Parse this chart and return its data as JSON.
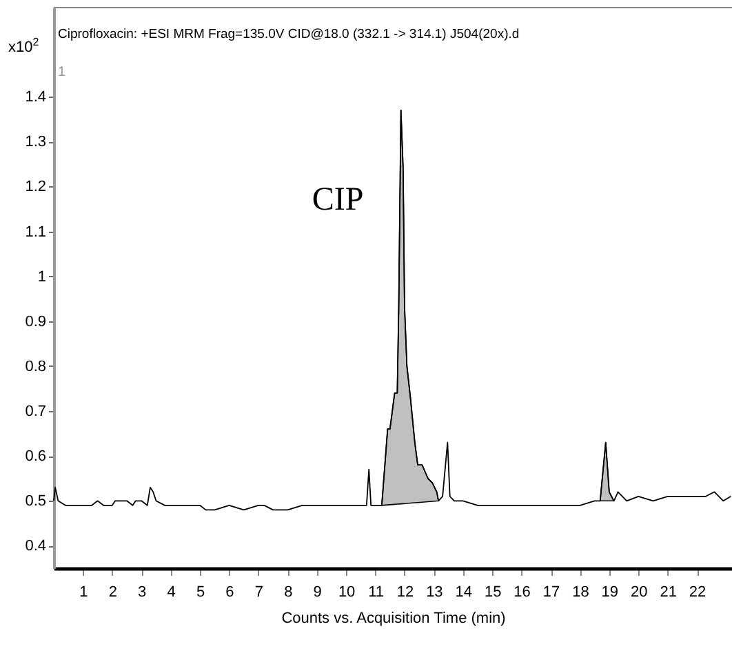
{
  "chart_data": {
    "type": "line",
    "title": "Ciprofloxacin: +ESI MRM Frag=135.0V CID@18.0 (332.1 -> 314.1) J504(20x).d",
    "xlabel": "Counts vs. Acquisition Time (min)",
    "ylabel": "x10$^{2}$",
    "annotations": [
      "1",
      "CIP"
    ],
    "series": [
      {
        "type": "area",
        "color": "#c0c0c0",
        "x": [
          11.22,
          11.42,
          11.5,
          11.66,
          11.75,
          11.8,
          11.875,
          11.95,
          12.0,
          12.08,
          12.2,
          12.35,
          12.45,
          12.6,
          12.8,
          12.95,
          13.1,
          13.16
        ],
        "values": [
          0.49,
          0.66,
          0.66,
          0.74,
          0.74,
          0.93,
          1.37,
          1.24,
          0.93,
          0.8,
          0.73,
          0.63,
          0.58,
          0.58,
          0.55,
          0.54,
          0.52,
          0.5
        ]
      },
      {
        "type": "area",
        "color": "#c0c0c0",
        "x": [
          18.69,
          18.88,
          19.0,
          19.16
        ],
        "values": [
          0.5,
          0.63,
          0.52,
          0.5
        ]
      },
      {
        "color": "#000000",
        "x": [
          0,
          0.05,
          0.15,
          0.4,
          0.7,
          1.0,
          1.3,
          1.5,
          1.7,
          2.0,
          2.1,
          2.3,
          2.5,
          2.7,
          2.8,
          3.0,
          3.2,
          3.3,
          3.4,
          3.5,
          3.8,
          4.0,
          4.5,
          5.0,
          5.2,
          5.5,
          6.0,
          6.5,
          7.0,
          7.2,
          7.5,
          8.0,
          8.5,
          9.0,
          9.5,
          10.0,
          10.5,
          10.7,
          10.78,
          10.85,
          11.0,
          11.22,
          11.42,
          11.5,
          11.66,
          11.75,
          11.8,
          11.875,
          11.95,
          12.0,
          12.08,
          12.2,
          12.35,
          12.45,
          12.6,
          12.8,
          12.95,
          13.1,
          13.16,
          13.3,
          13.47,
          13.55,
          13.7,
          14.0,
          14.5,
          15.0,
          15.5,
          16.0,
          16.5,
          17.0,
          17.5,
          18.0,
          18.5,
          18.69,
          18.88,
          19.0,
          19.16,
          19.3,
          19.6,
          20.0,
          20.5,
          21.0,
          21.5,
          22.0,
          22.3,
          22.6,
          22.9,
          23.16
        ],
        "values": [
          0.5,
          0.53,
          0.5,
          0.49,
          0.49,
          0.49,
          0.49,
          0.5,
          0.49,
          0.49,
          0.5,
          0.5,
          0.5,
          0.49,
          0.5,
          0.5,
          0.49,
          0.53,
          0.52,
          0.5,
          0.49,
          0.49,
          0.49,
          0.49,
          0.48,
          0.48,
          0.49,
          0.48,
          0.49,
          0.49,
          0.48,
          0.48,
          0.49,
          0.49,
          0.49,
          0.49,
          0.49,
          0.49,
          0.57,
          0.49,
          0.49,
          0.49,
          0.66,
          0.66,
          0.74,
          0.74,
          0.93,
          1.37,
          1.24,
          0.93,
          0.8,
          0.73,
          0.63,
          0.58,
          0.58,
          0.55,
          0.54,
          0.52,
          0.5,
          0.51,
          0.63,
          0.51,
          0.5,
          0.5,
          0.49,
          0.49,
          0.49,
          0.49,
          0.49,
          0.49,
          0.49,
          0.49,
          0.5,
          0.5,
          0.63,
          0.52,
          0.5,
          0.52,
          0.5,
          0.51,
          0.5,
          0.51,
          0.51,
          0.51,
          0.51,
          0.52,
          0.5,
          0.51
        ]
      }
    ],
    "xlim": [
      0,
      23.2
    ],
    "ylim": [
      0.35,
      1.6
    ],
    "xticks": [
      1,
      2,
      3,
      4,
      5,
      6,
      7,
      8,
      9,
      10,
      11,
      12,
      13,
      14,
      15,
      16,
      17,
      18,
      19,
      20,
      21,
      22
    ],
    "yticks": [
      0.4,
      0.5,
      0.6,
      0.7,
      0.8,
      0.9,
      1,
      1.1,
      1.2,
      1.3,
      1.4
    ],
    "grid": false,
    "line_style": "solid"
  }
}
